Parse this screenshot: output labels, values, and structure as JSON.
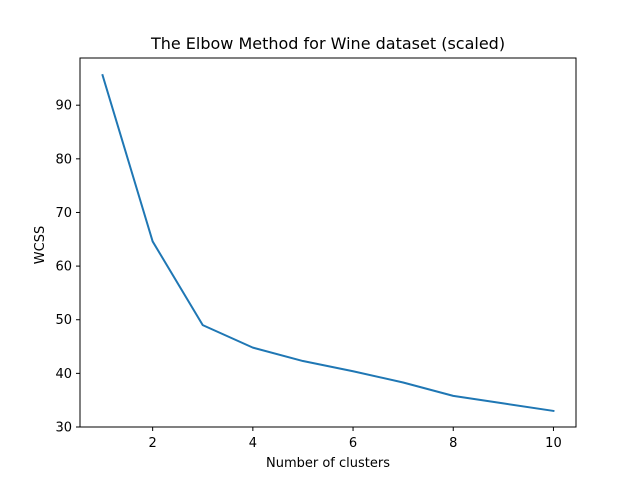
{
  "chart_data": {
    "type": "line",
    "title": "The Elbow Method for Wine dataset (scaled)",
    "xlabel": "Number of clusters",
    "ylabel": "WCSS",
    "x": [
      1,
      2,
      3,
      4,
      5,
      6,
      7,
      8,
      9,
      10
    ],
    "series": [
      {
        "values": [
          95.6,
          64.6,
          49.0,
          44.8,
          42.3,
          40.4,
          38.3,
          35.8,
          34.4,
          33.0
        ]
      }
    ],
    "xlim": [
      0.55,
      10.45
    ],
    "ylim": [
      30.0,
      98.8
    ],
    "xticks": [
      2,
      4,
      6,
      8,
      10
    ],
    "yticks": [
      30,
      40,
      50,
      60,
      70,
      80,
      90
    ],
    "grid": false,
    "line_color": "#1f77b4"
  }
}
